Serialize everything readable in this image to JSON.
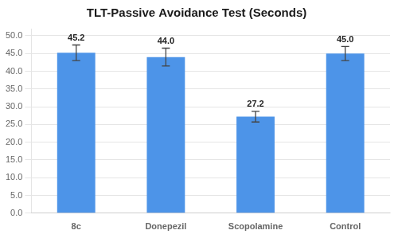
{
  "chart_data": {
    "type": "bar",
    "title": "TLT-Passive Avoidance Test (Seconds)",
    "categories": [
      "8c",
      "Donepezil",
      "Scopolamine",
      "Control"
    ],
    "values": [
      45.2,
      44.0,
      27.2,
      45.0
    ],
    "value_labels": [
      "45.2",
      "44.0",
      "27.2",
      "45.0"
    ],
    "errors": [
      2.2,
      2.5,
      1.5,
      2.0
    ],
    "color": "#4D94E8",
    "ylim": [
      0,
      52
    ],
    "yticks": [
      {
        "value": 0,
        "label": "0.0"
      },
      {
        "value": 5,
        "label": "5.0"
      },
      {
        "value": 10,
        "label": "10.0"
      },
      {
        "value": 15,
        "label": "15.0"
      },
      {
        "value": 20,
        "label": "20.0"
      },
      {
        "value": 25,
        "label": "25.0"
      },
      {
        "value": 30,
        "label": "30.0"
      },
      {
        "value": 35,
        "label": "35.0"
      },
      {
        "value": 40,
        "label": "40.0"
      },
      {
        "value": 45,
        "label": "45.0"
      },
      {
        "value": 50,
        "label": "50.0"
      }
    ],
    "grid": true,
    "data_labels": true
  }
}
